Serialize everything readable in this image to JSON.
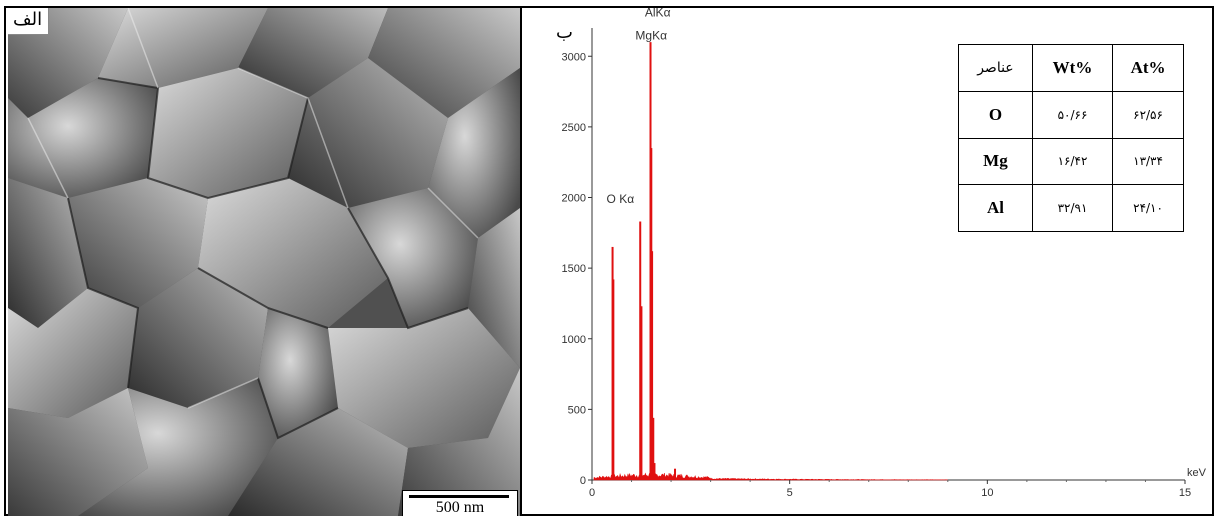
{
  "panel_a": {
    "label": "الف",
    "scale_bar": "500 nm"
  },
  "panel_b": {
    "label": "ب",
    "table": {
      "headers": [
        "عناصر",
        "Wt%",
        "At%"
      ],
      "rows": [
        {
          "element": "O",
          "wt": "۵۰/۶۶",
          "at": "۶۲/۵۶"
        },
        {
          "element": "Mg",
          "wt": "۱۶/۴۲",
          "at": "۱۳/۳۴"
        },
        {
          "element": "Al",
          "wt": "۳۲/۹۱",
          "at": "۲۴/۱۰"
        }
      ]
    }
  },
  "chart_data": {
    "type": "bar",
    "title": "",
    "xlabel": "keV",
    "ylabel": "",
    "xlim": [
      0,
      15
    ],
    "ylim": [
      0,
      3200
    ],
    "xticks": [
      0,
      5,
      10,
      15
    ],
    "yticks": [
      0,
      500,
      1000,
      1500,
      2000,
      2500,
      3000
    ],
    "x": [
      0.52,
      0.54,
      1.22,
      1.25,
      1.48,
      1.5,
      1.52,
      1.55,
      1.58,
      2.1
    ],
    "values": [
      1650,
      1420,
      1830,
      1230,
      3100,
      2350,
      1620,
      440,
      120,
      80
    ],
    "annotations": [
      {
        "text": "AlKα",
        "x": 1.49,
        "y": 3280
      },
      {
        "text": "MgKα",
        "x": 1.25,
        "y": 3120
      },
      {
        "text": "O Kα",
        "x": 0.52,
        "y": 1960
      }
    ],
    "grid": false,
    "color": "#e01010"
  }
}
